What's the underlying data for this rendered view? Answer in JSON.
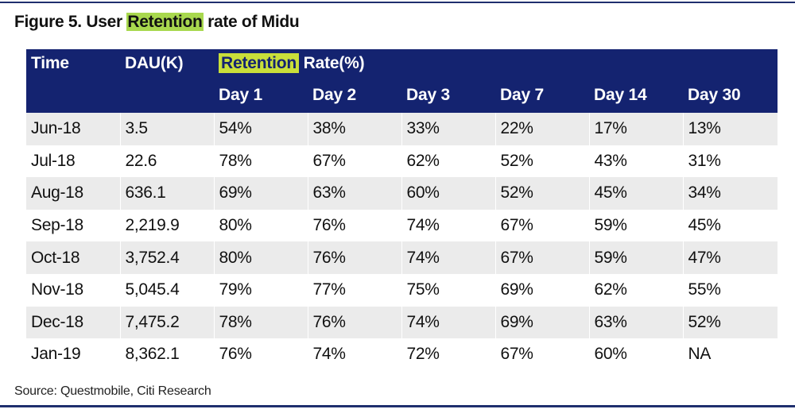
{
  "figure": {
    "title_prefix": "Figure 5. User ",
    "title_highlight": "Retention",
    "title_suffix": " rate of Midu"
  },
  "table": {
    "header_row1": {
      "time": "Time",
      "dau": "DAU(K)",
      "retention_highlight": "Retention",
      "retention_rest": "Rate(%)"
    },
    "day_headers": [
      "Day 1",
      "Day 2",
      "Day 3",
      "Day 7",
      "Day 14",
      "Day 30"
    ],
    "rows": [
      [
        "Jun-18",
        "3.5",
        "54%",
        "38%",
        "33%",
        "22%",
        "17%",
        "13%"
      ],
      [
        "Jul-18",
        "22.6",
        "78%",
        "67%",
        "62%",
        "52%",
        "43%",
        "31%"
      ],
      [
        "Aug-18",
        "636.1",
        "69%",
        "63%",
        "60%",
        "52%",
        "45%",
        "34%"
      ],
      [
        "Sep-18",
        "2,219.9",
        "80%",
        "76%",
        "74%",
        "67%",
        "59%",
        "45%"
      ],
      [
        "Oct-18",
        "3,752.4",
        "80%",
        "76%",
        "74%",
        "67%",
        "59%",
        "47%"
      ],
      [
        "Nov-18",
        "5,045.4",
        "79%",
        "77%",
        "75%",
        "69%",
        "62%",
        "55%"
      ],
      [
        "Dec-18",
        "7,475.2",
        "78%",
        "76%",
        "74%",
        "69%",
        "63%",
        "52%"
      ],
      [
        "Jan-19",
        "8,362.1",
        "76%",
        "74%",
        "72%",
        "67%",
        "60%",
        "NA"
      ]
    ]
  },
  "source": "Source: Questmobile, Citi Research",
  "colors": {
    "header_bg": "#142370",
    "highlight": "#c9df3a",
    "row_stripe": "#ebebeb",
    "rule": "#1f2f6e"
  }
}
